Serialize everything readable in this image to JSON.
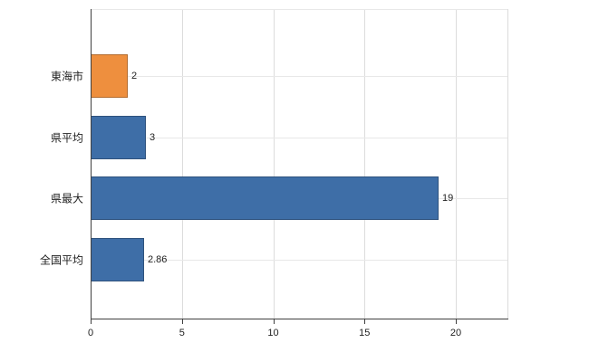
{
  "chart_data": {
    "type": "bar",
    "orientation": "horizontal",
    "title": "",
    "xlabel": "",
    "ylabel": "",
    "categories": [
      "東海市",
      "県平均",
      "県最大",
      "全国平均"
    ],
    "values": [
      2,
      3,
      19,
      2.86
    ],
    "value_labels": [
      "2",
      "3",
      "19",
      "2.86"
    ],
    "bar_colors": [
      "#ee8f3e",
      "#3e6ea7",
      "#3e6ea7",
      "#3e6ea7"
    ],
    "x_ticks": [
      "0",
      "5",
      "10",
      "15",
      "20"
    ],
    "x_tick_values": [
      0,
      5,
      10,
      15,
      20
    ],
    "xlim": [
      0,
      22.85
    ],
    "grid": "vertical",
    "legend": "none",
    "colors": {
      "highlight_bar": "#ee8f3e",
      "default_bar": "#3e6ea7",
      "axis": "#404040",
      "gridline": "#dcdcdc"
    }
  }
}
